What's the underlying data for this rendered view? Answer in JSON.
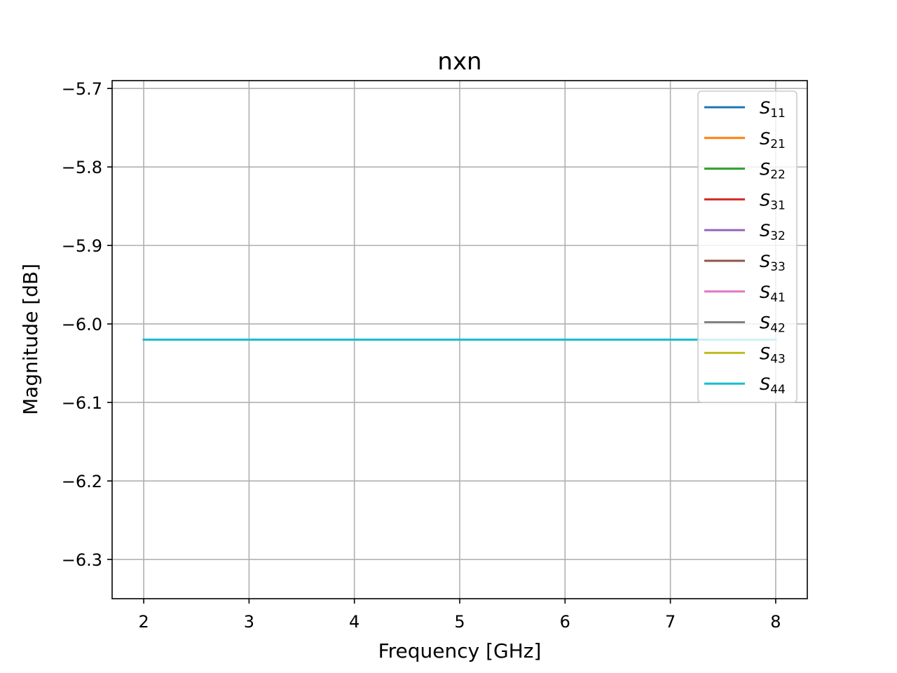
{
  "chart_data": {
    "type": "line",
    "title": "nxn",
    "xlabel": "Frequency [GHz]",
    "ylabel": "Magnitude [dB]",
    "xlim": [
      1.7,
      8.3
    ],
    "ylim": [
      -6.35,
      -5.69
    ],
    "xticks": [
      2,
      3,
      4,
      5,
      6,
      7,
      8
    ],
    "xtick_labels": [
      "2",
      "3",
      "4",
      "5",
      "6",
      "7",
      "8"
    ],
    "yticks": [
      -5.7,
      -5.8,
      -5.9,
      -6.0,
      -6.1,
      -6.2,
      -6.3
    ],
    "ytick_labels": [
      "−5.7",
      "−5.8",
      "−5.9",
      "−6.0",
      "−6.1",
      "−6.2",
      "−6.3"
    ],
    "grid": true,
    "legend_position": "top-right",
    "x": [
      2,
      3,
      4,
      5,
      6,
      7,
      8
    ],
    "series": [
      {
        "name": "S11",
        "base": "S",
        "sub": "11",
        "color": "#1f77b4",
        "values": [
          -6.02,
          -6.02,
          -6.02,
          -6.02,
          -6.02,
          -6.02,
          -6.02
        ]
      },
      {
        "name": "S21",
        "base": "S",
        "sub": "21",
        "color": "#ff7f0e",
        "values": [
          -6.02,
          -6.02,
          -6.02,
          -6.02,
          -6.02,
          -6.02,
          -6.02
        ]
      },
      {
        "name": "S22",
        "base": "S",
        "sub": "22",
        "color": "#2ca02c",
        "values": [
          -6.02,
          -6.02,
          -6.02,
          -6.02,
          -6.02,
          -6.02,
          -6.02
        ]
      },
      {
        "name": "S31",
        "base": "S",
        "sub": "31",
        "color": "#d62728",
        "values": [
          -6.02,
          -6.02,
          -6.02,
          -6.02,
          -6.02,
          -6.02,
          -6.02
        ]
      },
      {
        "name": "S32",
        "base": "S",
        "sub": "32",
        "color": "#9467bd",
        "values": [
          -6.02,
          -6.02,
          -6.02,
          -6.02,
          -6.02,
          -6.02,
          -6.02
        ]
      },
      {
        "name": "S33",
        "base": "S",
        "sub": "33",
        "color": "#8c564b",
        "values": [
          -6.02,
          -6.02,
          -6.02,
          -6.02,
          -6.02,
          -6.02,
          -6.02
        ]
      },
      {
        "name": "S41",
        "base": "S",
        "sub": "41",
        "color": "#e377c2",
        "values": [
          -6.02,
          -6.02,
          -6.02,
          -6.02,
          -6.02,
          -6.02,
          -6.02
        ]
      },
      {
        "name": "S42",
        "base": "S",
        "sub": "42",
        "color": "#7f7f7f",
        "values": [
          -6.02,
          -6.02,
          -6.02,
          -6.02,
          -6.02,
          -6.02,
          -6.02
        ]
      },
      {
        "name": "S43",
        "base": "S",
        "sub": "43",
        "color": "#bcbd22",
        "values": [
          -6.02,
          -6.02,
          -6.02,
          -6.02,
          -6.02,
          -6.02,
          -6.02
        ]
      },
      {
        "name": "S44",
        "base": "S",
        "sub": "44",
        "color": "#17becf",
        "values": [
          -6.02,
          -6.02,
          -6.02,
          -6.02,
          -6.02,
          -6.02,
          -6.02
        ]
      }
    ]
  }
}
